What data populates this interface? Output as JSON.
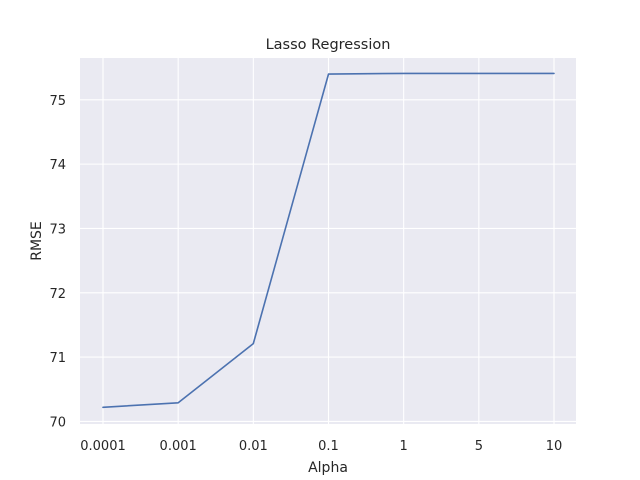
{
  "chart_data": {
    "type": "line",
    "title": "Lasso Regression",
    "xlabel": "Alpha",
    "ylabel": "RMSE",
    "categories": [
      "0.0001",
      "0.001",
      "0.01",
      "0.1",
      "1",
      "5",
      "10"
    ],
    "series": [
      {
        "values": [
          70.22,
          70.29,
          71.21,
          75.4,
          75.41,
          75.41,
          75.41
        ],
        "color": "#4c72b0"
      }
    ],
    "yticks": [
      70,
      71,
      72,
      73,
      74,
      75
    ],
    "ylim": [
      69.96,
      75.65
    ],
    "grid": true,
    "background": "#eaeaf2",
    "grid_color": "#ffffff"
  }
}
